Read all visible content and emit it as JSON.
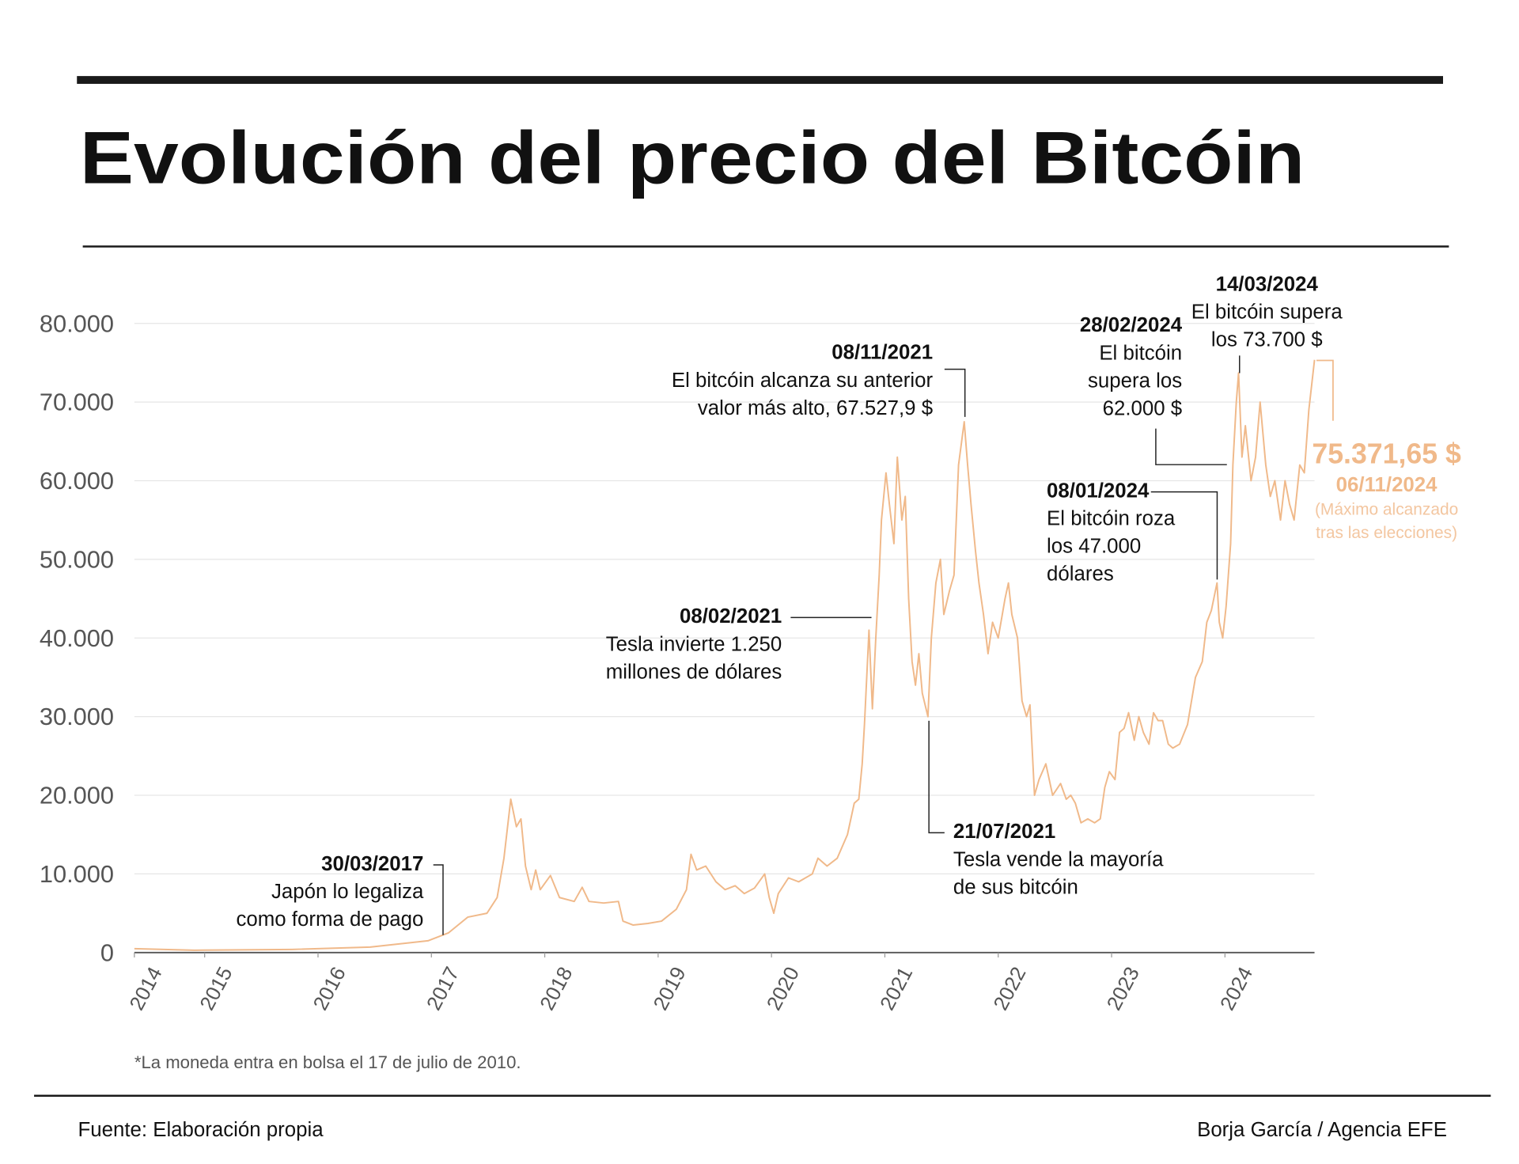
{
  "chart_data": {
    "type": "line",
    "title": "Evolución del precio del Bitcóin",
    "color": "#f0b98a",
    "grid": true,
    "xlim": [
      2014.38,
      2024.79
    ],
    "xticks": [
      {
        "value": 2014.38,
        "label": "2014"
      },
      2015,
      2016,
      2017,
      2018,
      2019,
      2020,
      2021,
      2022,
      2023,
      2024
    ],
    "ylim": [
      0,
      80000
    ],
    "yticks": [
      0,
      {
        "value": 10000,
        "label": "10.000"
      },
      {
        "value": 20000,
        "label": "20.000"
      },
      {
        "value": 30000,
        "label": "30.000"
      },
      {
        "value": 40000,
        "label": "40.000"
      },
      {
        "value": 50000,
        "label": "50.000"
      },
      {
        "value": 60000,
        "label": "60.000"
      },
      {
        "value": 70000,
        "label": "70.000"
      },
      {
        "value": 80000,
        "label": "80.000"
      }
    ],
    "x": [
      2014.38,
      2014.91,
      2015.77,
      2016.46,
      2016.97,
      2017.15,
      2017.32,
      2017.49,
      2017.58,
      2017.64,
      2017.7,
      2017.75,
      2017.79,
      2017.83,
      2017.88,
      2017.92,
      2017.96,
      2018.05,
      2018.13,
      2018.26,
      2018.33,
      2018.39,
      2018.52,
      2018.65,
      2018.69,
      2018.78,
      2018.91,
      2019.03,
      2019.16,
      2019.25,
      2019.29,
      2019.34,
      2019.42,
      2019.51,
      2019.59,
      2019.68,
      2019.76,
      2019.85,
      2019.94,
      2019.98,
      2020.02,
      2020.06,
      2020.15,
      2020.24,
      2020.36,
      2020.41,
      2020.49,
      2020.58,
      2020.67,
      2020.73,
      2020.77,
      2020.8,
      2020.82,
      2020.85,
      2020.86,
      2020.89,
      2020.92,
      2020.95,
      2020.97,
      2021.01,
      2021.04,
      2021.08,
      2021.11,
      2021.15,
      2021.18,
      2021.21,
      2021.24,
      2021.27,
      2021.3,
      2021.33,
      2021.38,
      2021.41,
      2021.45,
      2021.49,
      2021.52,
      2021.57,
      2021.61,
      2021.65,
      2021.7,
      2021.73,
      2021.76,
      2021.8,
      2021.83,
      2021.87,
      2021.91,
      2021.95,
      2022.0,
      2022.06,
      2022.09,
      2022.12,
      2022.17,
      2022.21,
      2022.25,
      2022.28,
      2022.32,
      2022.36,
      2022.42,
      2022.48,
      2022.55,
      2022.6,
      2022.64,
      2022.68,
      2022.73,
      2022.79,
      2022.85,
      2022.9,
      2022.94,
      2022.98,
      2023.03,
      2023.07,
      2023.11,
      2023.15,
      2023.2,
      2023.24,
      2023.28,
      2023.33,
      2023.37,
      2023.41,
      2023.45,
      2023.5,
      2023.54,
      2023.6,
      2023.67,
      2023.74,
      2023.8,
      2023.84,
      2023.88,
      2023.93,
      2023.95,
      2023.98,
      2024.01,
      2024.05,
      2024.07,
      2024.1,
      2024.12,
      2024.15,
      2024.18,
      2024.23,
      2024.27,
      2024.31,
      2024.36,
      2024.4,
      2024.44,
      2024.49,
      2024.53,
      2024.57,
      2024.61,
      2024.66,
      2024.7,
      2024.74,
      2024.79
    ],
    "values": [
      500,
      300,
      400,
      700,
      1500,
      2500,
      4500,
      5000,
      7000,
      12000,
      19500,
      16000,
      17000,
      11000,
      8000,
      10500,
      8000,
      9800,
      7000,
      6500,
      8300,
      6500,
      6300,
      6500,
      4000,
      3500,
      3700,
      4000,
      5500,
      8000,
      12500,
      10500,
      11000,
      9000,
      8000,
      8500,
      7500,
      8200,
      10000,
      7000,
      5000,
      7500,
      9500,
      9000,
      10000,
      12000,
      11000,
      12000,
      15000,
      19000,
      19500,
      24000,
      29000,
      38000,
      41000,
      31000,
      40000,
      48000,
      55000,
      61000,
      57000,
      52000,
      63000,
      55000,
      58000,
      45000,
      37000,
      34000,
      38000,
      33000,
      30000,
      40000,
      47000,
      50000,
      43000,
      46000,
      48000,
      62000,
      67500,
      62000,
      57000,
      51000,
      47000,
      43000,
      38000,
      42000,
      40000,
      45000,
      47000,
      43000,
      40000,
      32000,
      30000,
      31500,
      20000,
      22000,
      24000,
      20000,
      21500,
      19500,
      20000,
      19000,
      16500,
      17000,
      16500,
      17000,
      21000,
      23000,
      22000,
      28000,
      28500,
      30500,
      27000,
      30000,
      28000,
      26500,
      30500,
      29500,
      29500,
      26500,
      26000,
      26500,
      29000,
      35000,
      37000,
      42000,
      43500,
      47000,
      42000,
      40000,
      44000,
      52000,
      62000,
      70000,
      73700,
      63000,
      67000,
      60000,
      63000,
      70000,
      62000,
      58000,
      60000,
      55000,
      60000,
      57000,
      55000,
      62000,
      61000,
      69000,
      75371.65
    ],
    "annotations": [
      {
        "date": "30/03/2017",
        "text": [
          "Japón lo legaliza",
          "como forma de pago"
        ]
      },
      {
        "date": "08/02/2021",
        "text": [
          "Tesla invierte 1.250",
          "millones de dólares"
        ]
      },
      {
        "date": "08/11/2021",
        "text": [
          "El bitcóin alcanza su anterior",
          "valor más alto, 67.527,9 $"
        ]
      },
      {
        "date": "21/07/2021",
        "text": [
          "Tesla vende la mayoría",
          "de sus bitcóin"
        ]
      },
      {
        "date": "08/01/2024",
        "text": [
          "El bitcóin roza",
          "los 47.000",
          "dólares"
        ]
      },
      {
        "date": "28/02/2024",
        "text": [
          "El bitcóin",
          "supera los",
          "62.000 $"
        ]
      },
      {
        "date": "14/03/2024",
        "text": [
          "El bitcóin supera",
          "los 73.700 $"
        ]
      }
    ],
    "highlight": {
      "label": "75.371,65 $",
      "date": "06/11/2024",
      "text": [
        "(Máximo alcanzado",
        "tras las elecciones)"
      ]
    }
  },
  "footnote": "*La moneda entra en bolsa el 17 de julio de 2010.",
  "source": "Fuente: Elaboración propia",
  "credit": "Borja García / Agencia EFE"
}
